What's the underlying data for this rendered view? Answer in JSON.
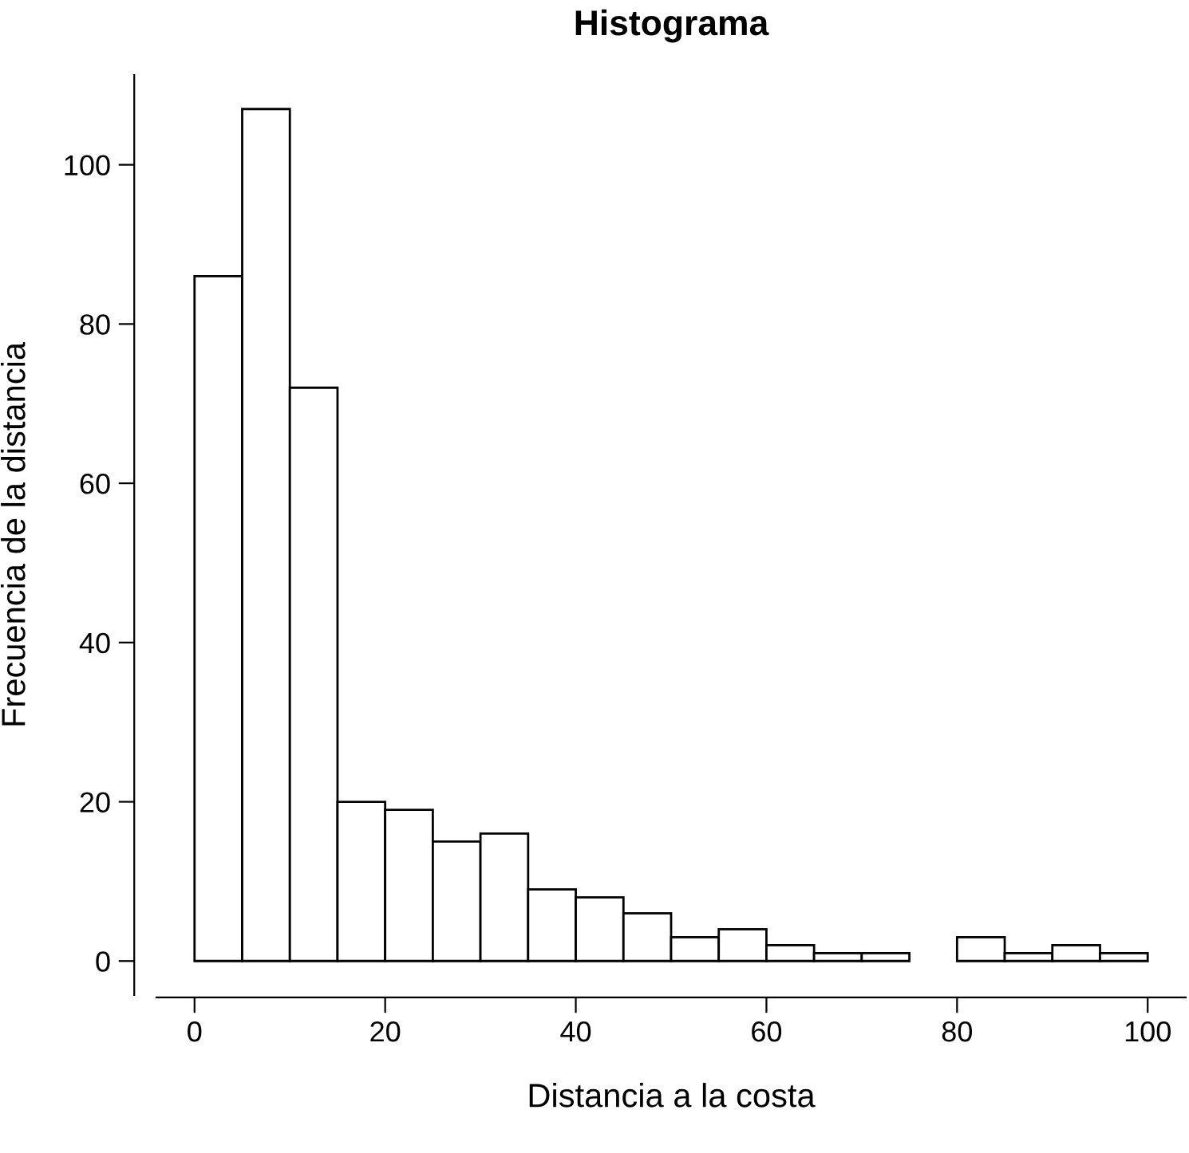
{
  "chart_data": {
    "type": "histogram",
    "title": "Histograma",
    "xlabel": "Distancia a la costa",
    "ylabel": "Frecuencia de la distancia",
    "bins": [
      0,
      5,
      10,
      15,
      20,
      25,
      30,
      35,
      40,
      45,
      50,
      55,
      60,
      65,
      70,
      75,
      80,
      85,
      90,
      95,
      100
    ],
    "values": [
      86,
      107,
      72,
      20,
      19,
      15,
      16,
      9,
      8,
      6,
      3,
      4,
      2,
      1,
      1,
      0,
      3,
      1,
      2,
      1
    ],
    "color": "#ffffff",
    "xlim": [
      -4,
      104
    ],
    "ylim": [
      -4.28,
      111.28
    ],
    "xticks": [
      0,
      20,
      40,
      60,
      80,
      100
    ],
    "yticks": [
      0,
      20,
      40,
      60,
      80,
      100
    ],
    "grid": false
  }
}
